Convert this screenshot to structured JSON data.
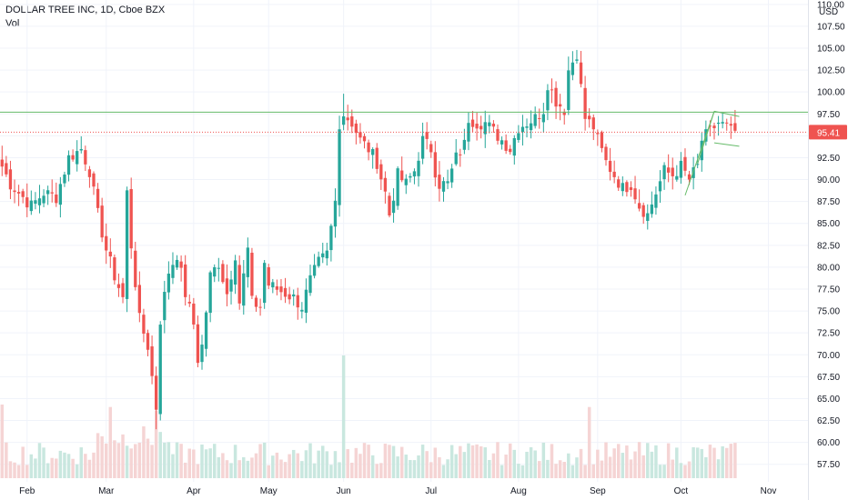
{
  "header": {
    "symbol_line": "DOLLAR TREE INC, 1D, Cboe BZX",
    "vol_label": "Vol"
  },
  "colors": {
    "up": "#26a69a",
    "down": "#ef5350",
    "vol_up": "#c9e7df",
    "vol_down": "#f5d4d4",
    "resistance": "#66bb6a",
    "price_line": "#ef5350",
    "grid": "#f0f3fa",
    "axis": "#e0e3eb"
  },
  "chart_data": {
    "type": "candlestick",
    "title": "DOLLAR TREE INC, 1D, Cboe BZX",
    "y_axis": {
      "unit": "USD",
      "min": 55.5,
      "max": 110.5,
      "ticks": [
        "110.00",
        "107.50",
        "105.00",
        "102.50",
        "100.00",
        "97.50",
        "95.00",
        "92.50",
        "90.00",
        "87.50",
        "85.00",
        "82.50",
        "80.00",
        "77.50",
        "75.00",
        "72.50",
        "70.00",
        "67.50",
        "65.00",
        "62.50",
        "60.00",
        "57.50"
      ]
    },
    "x_axis": {
      "ticks": [
        {
          "label": "Feb",
          "index": 6
        },
        {
          "label": "Mar",
          "index": 25
        },
        {
          "label": "Apr",
          "index": 46
        },
        {
          "label": "May",
          "index": 64
        },
        {
          "label": "Jun",
          "index": 82
        },
        {
          "label": "Jul",
          "index": 103
        },
        {
          "label": "Aug",
          "index": 124
        },
        {
          "label": "Sep",
          "index": 143
        },
        {
          "label": "Oct",
          "index": 163
        },
        {
          "label": "Nov",
          "index": 184
        }
      ],
      "total_slots": 194
    },
    "last_price": "95.41",
    "resistance_level": 97.7,
    "anchors": [
      [
        0,
        91.5
      ],
      [
        2,
        89.5
      ],
      [
        4,
        88.5
      ],
      [
        7,
        87
      ],
      [
        10,
        88.5
      ],
      [
        13,
        88
      ],
      [
        16,
        92.5
      ],
      [
        19,
        93.5
      ],
      [
        21,
        91
      ],
      [
        23,
        86
      ],
      [
        25,
        82
      ],
      [
        27,
        79
      ],
      [
        29,
        76.5
      ],
      [
        30,
        88.5
      ],
      [
        31,
        82.5
      ],
      [
        33,
        74
      ],
      [
        35,
        71
      ],
      [
        37,
        64
      ],
      [
        38,
        74
      ],
      [
        40,
        79.5
      ],
      [
        42,
        81.5
      ],
      [
        44,
        77
      ],
      [
        46,
        73.5
      ],
      [
        47,
        69.5
      ],
      [
        48,
        71
      ],
      [
        50,
        79
      ],
      [
        52,
        80.5
      ],
      [
        54,
        77
      ],
      [
        56,
        81.5
      ],
      [
        57,
        76
      ],
      [
        59,
        82
      ],
      [
        60,
        76
      ],
      [
        62,
        75.5
      ],
      [
        63,
        80.5
      ],
      [
        64,
        78
      ],
      [
        66,
        77.5
      ],
      [
        68,
        77
      ],
      [
        70,
        76.5
      ],
      [
        72,
        75.5
      ],
      [
        74,
        78.5
      ],
      [
        76,
        80.5
      ],
      [
        78,
        81.5
      ],
      [
        80,
        87.5
      ],
      [
        81,
        96.5
      ],
      [
        82,
        97.5
      ],
      [
        84,
        96.5
      ],
      [
        86,
        94.5
      ],
      [
        88,
        93.5
      ],
      [
        90,
        92
      ],
      [
        92,
        88.5
      ],
      [
        93,
        86
      ],
      [
        95,
        90.5
      ],
      [
        97,
        89.5
      ],
      [
        99,
        91
      ],
      [
        101,
        94.5
      ],
      [
        103,
        93.5
      ],
      [
        104,
        91
      ],
      [
        105,
        89.5
      ],
      [
        107,
        89.5
      ],
      [
        109,
        92.5
      ],
      [
        111,
        94
      ],
      [
        112,
        97
      ],
      [
        114,
        96.5
      ],
      [
        116,
        96.5
      ],
      [
        118,
        95.5
      ],
      [
        120,
        94.5
      ],
      [
        122,
        93.5
      ],
      [
        124,
        96
      ],
      [
        126,
        96.5
      ],
      [
        128,
        97
      ],
      [
        130,
        98
      ],
      [
        131,
        101
      ],
      [
        133,
        99
      ],
      [
        135,
        98
      ],
      [
        136,
        102.5
      ],
      [
        138,
        104.5
      ],
      [
        139,
        100.5
      ],
      [
        140,
        97
      ],
      [
        142,
        96
      ],
      [
        143,
        94.5
      ],
      [
        145,
        92
      ],
      [
        147,
        90.5
      ],
      [
        149,
        89
      ],
      [
        151,
        89.5
      ],
      [
        153,
        87
      ],
      [
        155,
        86
      ],
      [
        157,
        88.5
      ],
      [
        159,
        91
      ],
      [
        161,
        90.5
      ],
      [
        163,
        91.5
      ],
      [
        165,
        90
      ],
      [
        167,
        91.5
      ],
      [
        168,
        94.5
      ],
      [
        170,
        95.5
      ],
      [
        172,
        96.5
      ],
      [
        174,
        96
      ],
      [
        175,
        95.5
      ],
      [
        176,
        95.5
      ]
    ],
    "special_bars": {
      "37": {
        "low": 61.5
      },
      "82": {
        "high": 99.8
      },
      "80": {
        "high": 89
      },
      "138": {
        "high": 104.8
      },
      "155": {
        "low": 84.3
      }
    },
    "volume_spikes": {
      "82": 1.0,
      "37": 0.55,
      "141": 0.58,
      "26": 0.58,
      "0": 0.6
    }
  }
}
